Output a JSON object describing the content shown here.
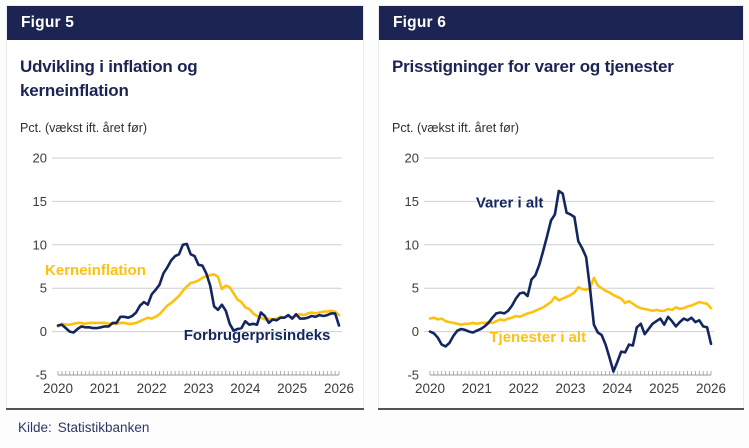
{
  "source": {
    "label": "Kilde:",
    "value": "Statistikbanken"
  },
  "colors": {
    "brand_navy": "#1b2453",
    "line_navy": "#14265f",
    "line_yellow": "#fdc20f",
    "grid": "#cfcfcf",
    "axis_text": "#3b3b3b",
    "ruler": "#9b9b9b",
    "divider": "#53535c"
  },
  "figures": [
    {
      "figure_label": "Figur 5",
      "title_lines": [
        "Udvikling i inflation og",
        "kerneinflation"
      ],
      "unit_label": "Pct. (vækst ift. året før)"
    },
    {
      "figure_label": "Figur 6",
      "title_lines": [
        "Prisstigninger for varer og tjenester"
      ],
      "unit_label": "Pct. (vækst ift. året før)"
    }
  ],
  "chart_data": [
    {
      "type": "line",
      "title": "Udvikling i inflation og kerneinflation",
      "ylabel": "Pct. (vækst ift. året før)",
      "x_start_year": 2020,
      "x_frequency": "monthly",
      "xticks": [
        2020,
        2021,
        2022,
        2023,
        2024,
        2025,
        2026
      ],
      "yticks": [
        -5,
        0,
        5,
        10,
        15,
        20
      ],
      "ylim": [
        -5,
        20
      ],
      "grid": true,
      "series": [
        {
          "name": "Kerneinflation",
          "color": "#fdc20f",
          "values": [
            0.6,
            0.9,
            0.8,
            0.8,
            0.9,
            1.0,
            1.0,
            0.9,
            1.0,
            1.0,
            1.0,
            1.0,
            1.0,
            0.9,
            0.9,
            0.9,
            1.0,
            1.0,
            0.9,
            0.9,
            1.0,
            1.2,
            1.4,
            1.6,
            1.5,
            1.7,
            2.0,
            2.5,
            3.0,
            3.3,
            3.7,
            4.1,
            4.7,
            5.2,
            5.6,
            5.7,
            5.9,
            6.2,
            6.4,
            6.5,
            6.6,
            6.3,
            4.9,
            5.3,
            5.1,
            4.4,
            3.7,
            3.4,
            2.8,
            2.6,
            2.1,
            1.8,
            1.6,
            1.4,
            1.5,
            1.4,
            1.5,
            1.7,
            1.6,
            1.8,
            1.6,
            1.8,
            2.0,
            1.9,
            2.1,
            2.2,
            2.1,
            2.2,
            2.3,
            2.3,
            2.4,
            2.3,
            1.9
          ]
        },
        {
          "name": "Forbrugerprisindeks",
          "color": "#14265f",
          "values": [
            0.7,
            0.8,
            0.4,
            0.0,
            -0.1,
            0.3,
            0.6,
            0.5,
            0.5,
            0.4,
            0.4,
            0.5,
            0.6,
            0.6,
            1.0,
            1.0,
            1.7,
            1.7,
            1.6,
            1.8,
            2.2,
            3.0,
            3.4,
            3.1,
            4.3,
            4.8,
            5.4,
            6.7,
            7.4,
            8.2,
            8.7,
            8.9,
            10.0,
            10.1,
            8.9,
            8.7,
            7.7,
            7.6,
            6.7,
            5.3,
            2.9,
            2.5,
            3.1,
            2.4,
            0.9,
            0.1,
            0.3,
            0.4,
            1.2,
            0.8,
            0.9,
            0.8,
            2.2,
            1.8,
            1.0,
            1.4,
            1.3,
            1.6,
            1.6,
            1.9,
            1.5,
            2.0,
            1.5,
            1.5,
            1.6,
            1.8,
            1.7,
            1.9,
            1.8,
            1.9,
            2.1,
            2.1,
            0.7
          ]
        }
      ],
      "annotations": [
        {
          "text": "Kerneinflation",
          "x": 2020.8,
          "y": 6.5,
          "color": "#fdc20f"
        },
        {
          "text": "Forbrugerprisindeks",
          "x": 2024.25,
          "y": -0.95,
          "color": "#14265f"
        }
      ]
    },
    {
      "type": "line",
      "title": "Prisstigninger for varer og tjenester",
      "ylabel": "Pct. (vækst ift. året før)",
      "x_start_year": 2020,
      "x_frequency": "monthly",
      "xticks": [
        2020,
        2021,
        2022,
        2023,
        2024,
        2025,
        2026
      ],
      "yticks": [
        -5,
        0,
        5,
        10,
        15,
        20
      ],
      "ylim": [
        -5,
        20
      ],
      "grid": true,
      "series": [
        {
          "name": "Tjenester i alt",
          "color": "#fdc20f",
          "values": [
            1.5,
            1.6,
            1.4,
            1.5,
            1.2,
            1.1,
            1.0,
            0.9,
            0.8,
            0.9,
            0.9,
            1.0,
            0.9,
            1.0,
            1.0,
            1.1,
            1.0,
            1.2,
            1.4,
            1.3,
            1.5,
            1.6,
            1.8,
            1.7,
            1.9,
            2.1,
            2.2,
            2.4,
            2.6,
            2.8,
            3.1,
            3.4,
            4.0,
            3.6,
            3.8,
            4.0,
            4.2,
            4.5,
            5.1,
            4.9,
            4.8,
            5.0,
            6.2,
            5.3,
            5.0,
            4.7,
            4.5,
            4.2,
            4.0,
            3.8,
            3.3,
            3.5,
            3.2,
            2.9,
            2.7,
            2.6,
            2.5,
            2.4,
            2.5,
            2.4,
            2.4,
            2.6,
            2.5,
            2.8,
            2.6,
            2.7,
            2.9,
            3.0,
            3.2,
            3.4,
            3.3,
            3.2,
            2.7
          ]
        },
        {
          "name": "Varer i alt",
          "color": "#14265f",
          "values": [
            0.0,
            -0.2,
            -0.7,
            -1.5,
            -1.7,
            -1.3,
            -0.5,
            0.1,
            0.3,
            0.2,
            0.0,
            -0.1,
            0.1,
            0.3,
            0.6,
            1.0,
            1.6,
            2.1,
            2.2,
            2.1,
            2.4,
            3.0,
            3.8,
            4.4,
            4.5,
            4.1,
            6.0,
            6.5,
            7.7,
            9.3,
            11.0,
            12.8,
            13.5,
            16.2,
            15.9,
            13.7,
            13.5,
            13.2,
            10.4,
            9.6,
            8.6,
            5.0,
            0.8,
            -0.1,
            -0.4,
            -1.5,
            -3.0,
            -4.6,
            -3.5,
            -2.3,
            -2.4,
            -1.5,
            -1.6,
            0.5,
            0.9,
            -0.3,
            0.3,
            0.9,
            1.2,
            1.5,
            0.8,
            1.7,
            1.2,
            0.6,
            1.1,
            1.5,
            1.3,
            1.6,
            1.1,
            1.3,
            0.6,
            0.5,
            -1.4
          ]
        }
      ],
      "annotations": [
        {
          "text": "Varer i alt",
          "x": 2021.7,
          "y": 14.3,
          "color": "#14265f"
        },
        {
          "text": "Tjenester i alt",
          "x": 2022.3,
          "y": -1.2,
          "color": "#fdc20f"
        }
      ]
    }
  ]
}
